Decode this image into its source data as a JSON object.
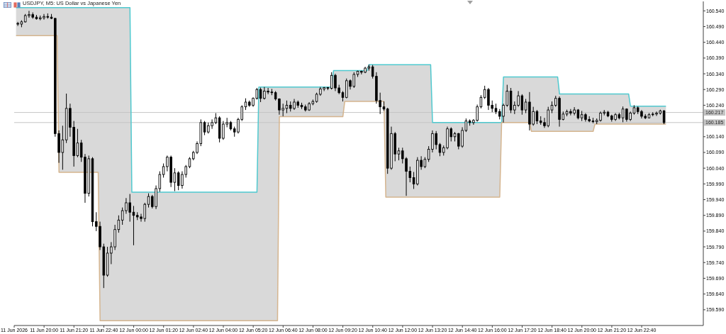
{
  "chart_data": {
    "type": "candlestick",
    "title": "USDJPY, M5: US Dollar vs Japanese Yen",
    "color": "#000000",
    "x": [
      "2026-06-11T18:50",
      "2026-06-11T19:00",
      "2026-06-11T19:10",
      "2026-06-11T19:20",
      "2026-06-11T19:30",
      "2026-06-11T19:40",
      "2026-06-11T19:50",
      "2026-06-11T20:00",
      "2026-06-11T20:10",
      "2026-06-11T20:20",
      "2026-06-11T20:30",
      "2026-06-11T20:40",
      "2026-06-11T20:50",
      "2026-06-11T21:00",
      "2026-06-11T21:10",
      "2026-06-11T21:20",
      "2026-06-11T21:30",
      "2026-06-11T21:40",
      "2026-06-11T21:50",
      "2026-06-11T22:00",
      "2026-06-11T22:10",
      "2026-06-11T22:20",
      "2026-06-11T22:30",
      "2026-06-11T22:40",
      "2026-06-11T22:50",
      "2026-06-11T23:00",
      "2026-06-11T23:10",
      "2026-06-11T23:20",
      "2026-06-11T23:30",
      "2026-06-11T23:40",
      "2026-06-11T23:50",
      "2026-06-12T00:00",
      "2026-06-12T00:10",
      "2026-06-12T00:20",
      "2026-06-12T00:30",
      "2026-06-12T00:40",
      "2026-06-12T00:50",
      "2026-06-12T01:00",
      "2026-06-12T01:10",
      "2026-06-12T01:20",
      "2026-06-12T01:30",
      "2026-06-12T01:40",
      "2026-06-12T01:50",
      "2026-06-12T02:00",
      "2026-06-12T02:10",
      "2026-06-12T02:20",
      "2026-06-12T02:30",
      "2026-06-12T02:40",
      "2026-06-12T02:50",
      "2026-06-12T03:00",
      "2026-06-12T03:10",
      "2026-06-12T03:20",
      "2026-06-12T03:30",
      "2026-06-12T03:40",
      "2026-06-12T03:50",
      "2026-06-12T04:00",
      "2026-06-12T04:10",
      "2026-06-12T04:20",
      "2026-06-12T04:30",
      "2026-06-12T04:40",
      "2026-06-12T04:50",
      "2026-06-12T05:00",
      "2026-06-12T05:10",
      "2026-06-12T05:20",
      "2026-06-12T05:30",
      "2026-06-12T05:40",
      "2026-06-12T05:50",
      "2026-06-12T06:00",
      "2026-06-12T06:10",
      "2026-06-12T06:20",
      "2026-06-12T06:30",
      "2026-06-12T06:40",
      "2026-06-12T06:50",
      "2026-06-12T07:00",
      "2026-06-12T07:10",
      "2026-06-12T07:20",
      "2026-06-12T07:30",
      "2026-06-12T07:40",
      "2026-06-12T07:50",
      "2026-06-12T08:00",
      "2026-06-12T08:10",
      "2026-06-12T08:20",
      "2026-06-12T08:30",
      "2026-06-12T08:40",
      "2026-06-12T08:50",
      "2026-06-12T09:00",
      "2026-06-12T09:10",
      "2026-06-12T09:20",
      "2026-06-12T09:30",
      "2026-06-12T09:40",
      "2026-06-12T09:50",
      "2026-06-12T10:00",
      "2026-06-12T10:10",
      "2026-06-12T10:20",
      "2026-06-12T10:30",
      "2026-06-12T10:40",
      "2026-06-12T10:50",
      "2026-06-12T11:00",
      "2026-06-12T11:10",
      "2026-06-12T11:20",
      "2026-06-12T11:30",
      "2026-06-12T11:40",
      "2026-06-12T11:50",
      "2026-06-12T12:00",
      "2026-06-12T12:10",
      "2026-06-12T12:20",
      "2026-06-12T12:30",
      "2026-06-12T12:40",
      "2026-06-12T12:50",
      "2026-06-12T13:00",
      "2026-06-12T13:10",
      "2026-06-12T13:20",
      "2026-06-12T13:30",
      "2026-06-12T13:40",
      "2026-06-12T13:50",
      "2026-06-12T14:00",
      "2026-06-12T14:10",
      "2026-06-12T14:20",
      "2026-06-12T14:30",
      "2026-06-12T14:40",
      "2026-06-12T14:50",
      "2026-06-12T15:00",
      "2026-06-12T15:10",
      "2026-06-12T15:20",
      "2026-06-12T15:30",
      "2026-06-12T15:40",
      "2026-06-12T15:50",
      "2026-06-12T16:00",
      "2026-06-12T16:10",
      "2026-06-12T16:20",
      "2026-06-12T16:30",
      "2026-06-12T16:40",
      "2026-06-12T16:50",
      "2026-06-12T17:00",
      "2026-06-12T17:10",
      "2026-06-12T17:20",
      "2026-06-12T17:30",
      "2026-06-12T17:40",
      "2026-06-12T17:50",
      "2026-06-12T18:00",
      "2026-06-12T18:10",
      "2026-06-12T18:20",
      "2026-06-12T18:30",
      "2026-06-12T18:40",
      "2026-06-12T18:50",
      "2026-06-12T19:00",
      "2026-06-12T19:10",
      "2026-06-12T19:20",
      "2026-06-12T19:30",
      "2026-06-12T19:40",
      "2026-06-12T19:50",
      "2026-06-12T20:00",
      "2026-06-12T20:10",
      "2026-06-12T20:20",
      "2026-06-12T20:30",
      "2026-06-12T20:40",
      "2026-06-12T20:50",
      "2026-06-12T21:00",
      "2026-06-12T21:10",
      "2026-06-12T21:20",
      "2026-06-12T21:30",
      "2026-06-12T21:40",
      "2026-06-12T21:50",
      "2026-06-12T22:00",
      "2026-06-12T22:10",
      "2026-06-12T22:20",
      "2026-06-12T22:30",
      "2026-06-12T22:40",
      "2026-06-12T22:50",
      "2026-06-12T23:00",
      "2026-06-12T23:10",
      "2026-06-12T23:20",
      "2026-06-12T23:30",
      "2026-06-12T23:40"
    ],
    "ohlc": [
      [
        160.5,
        160.505,
        160.492,
        160.498
      ],
      [
        160.498,
        160.51,
        160.488,
        160.505
      ],
      [
        160.505,
        160.53,
        160.503,
        160.525
      ],
      [
        160.525,
        160.54,
        160.518,
        160.528
      ],
      [
        160.528,
        160.535,
        160.515,
        160.52
      ],
      [
        160.52,
        160.527,
        160.512,
        160.515
      ],
      [
        160.515,
        160.525,
        160.51,
        160.518
      ],
      [
        160.518,
        160.53,
        160.512,
        160.522
      ],
      [
        160.522,
        160.532,
        160.515,
        160.52
      ],
      [
        160.52,
        160.53,
        160.514,
        160.516
      ],
      [
        160.516,
        160.518,
        160.14,
        160.15
      ],
      [
        160.15,
        160.16,
        160.057,
        160.09
      ],
      [
        160.09,
        160.175,
        160.035,
        160.13
      ],
      [
        160.13,
        160.277,
        160.12,
        160.23
      ],
      [
        160.23,
        160.245,
        160.14,
        160.17
      ],
      [
        160.17,
        160.19,
        160.045,
        160.08
      ],
      [
        160.08,
        160.165,
        160.075,
        160.12
      ],
      [
        160.12,
        160.13,
        160.06,
        160.075
      ],
      [
        160.075,
        160.085,
        159.93,
        159.96
      ],
      [
        159.96,
        160.08,
        159.95,
        160.07
      ],
      [
        160.07,
        160.075,
        159.855,
        159.87
      ],
      [
        159.87,
        159.9,
        159.84,
        159.855
      ],
      [
        159.855,
        159.87,
        159.78,
        159.79
      ],
      [
        159.79,
        159.8,
        159.659,
        159.7
      ],
      [
        159.7,
        159.79,
        159.695,
        159.77
      ],
      [
        159.77,
        159.805,
        159.735,
        159.79
      ],
      [
        159.79,
        159.86,
        159.78,
        159.845
      ],
      [
        159.845,
        159.89,
        159.835,
        159.875
      ],
      [
        159.875,
        159.915,
        159.86,
        159.905
      ],
      [
        159.905,
        159.945,
        159.895,
        159.93
      ],
      [
        159.93,
        159.958,
        159.87,
        159.9
      ],
      [
        159.9,
        159.92,
        159.795,
        159.89
      ],
      [
        159.89,
        159.9,
        159.875,
        159.885
      ],
      [
        159.885,
        159.895,
        159.87,
        159.88
      ],
      [
        159.88,
        159.93,
        159.87,
        159.925
      ],
      [
        159.925,
        159.96,
        159.915,
        159.95
      ],
      [
        159.95,
        159.955,
        159.912,
        159.918
      ],
      [
        159.918,
        159.985,
        159.91,
        159.975
      ],
      [
        159.975,
        160.03,
        159.965,
        160.02
      ],
      [
        160.02,
        160.055,
        160.01,
        160.045
      ],
      [
        160.045,
        160.08,
        160.03,
        160.075
      ],
      [
        160.075,
        160.08,
        159.98,
        159.995
      ],
      [
        159.995,
        160.04,
        159.967,
        160.025
      ],
      [
        160.025,
        160.03,
        159.97,
        159.985
      ],
      [
        159.985,
        160.03,
        159.975,
        160.02
      ],
      [
        160.02,
        160.05,
        160.01,
        160.045
      ],
      [
        160.045,
        160.075,
        160.04,
        160.07
      ],
      [
        160.07,
        160.095,
        160.065,
        160.09
      ],
      [
        160.09,
        160.125,
        160.085,
        160.118
      ],
      [
        160.118,
        160.195,
        160.11,
        160.185
      ],
      [
        160.185,
        160.19,
        160.145,
        160.155
      ],
      [
        160.155,
        160.185,
        160.15,
        160.175
      ],
      [
        160.175,
        160.195,
        160.165,
        160.185
      ],
      [
        160.185,
        160.215,
        160.18,
        160.2
      ],
      [
        160.2,
        160.205,
        160.122,
        160.135
      ],
      [
        160.135,
        160.19,
        160.13,
        160.18
      ],
      [
        160.18,
        160.2,
        160.17,
        160.185
      ],
      [
        160.185,
        160.19,
        160.16,
        160.165
      ],
      [
        160.165,
        160.172,
        160.14,
        160.155
      ],
      [
        160.155,
        160.2,
        160.15,
        160.195
      ],
      [
        160.195,
        160.24,
        160.19,
        160.235
      ],
      [
        160.235,
        160.262,
        160.225,
        160.25
      ],
      [
        160.25,
        160.255,
        160.235,
        160.24
      ],
      [
        160.24,
        160.265,
        160.235,
        160.262
      ],
      [
        160.262,
        160.295,
        160.258,
        160.29
      ],
      [
        160.29,
        160.296,
        160.25,
        160.262
      ],
      [
        160.262,
        160.298,
        160.258,
        160.285
      ],
      [
        160.285,
        160.295,
        160.275,
        160.282
      ],
      [
        160.282,
        160.292,
        160.272,
        160.28
      ],
      [
        160.28,
        160.285,
        160.255,
        160.26
      ],
      [
        160.26,
        160.262,
        160.21,
        160.225
      ],
      [
        160.225,
        160.245,
        160.205,
        160.23
      ],
      [
        160.23,
        160.255,
        160.215,
        160.24
      ],
      [
        160.24,
        160.252,
        160.22,
        160.23
      ],
      [
        160.23,
        160.26,
        160.225,
        160.25
      ],
      [
        160.25,
        160.255,
        160.232,
        160.24
      ],
      [
        160.24,
        160.248,
        160.228,
        160.235
      ],
      [
        160.235,
        160.242,
        160.22,
        160.225
      ],
      [
        160.225,
        160.25,
        160.222,
        160.245
      ],
      [
        160.245,
        160.258,
        160.24,
        160.252
      ],
      [
        160.252,
        160.28,
        160.248,
        160.275
      ],
      [
        160.275,
        160.298,
        160.27,
        160.292
      ],
      [
        160.292,
        160.298,
        160.285,
        160.296
      ],
      [
        160.296,
        160.298,
        160.288,
        160.294
      ],
      [
        160.294,
        160.345,
        160.29,
        160.335
      ],
      [
        160.335,
        160.34,
        160.285,
        160.295
      ],
      [
        160.295,
        160.305,
        160.275,
        160.28
      ],
      [
        160.28,
        160.285,
        160.252,
        160.265
      ],
      [
        160.265,
        160.325,
        160.262,
        160.318
      ],
      [
        160.318,
        160.322,
        160.29,
        160.3
      ],
      [
        160.3,
        160.345,
        160.295,
        160.338
      ],
      [
        160.338,
        160.35,
        160.33,
        160.348
      ],
      [
        160.348,
        160.35,
        160.338,
        160.345
      ],
      [
        160.345,
        160.362,
        160.342,
        160.358
      ],
      [
        160.358,
        160.369,
        160.35,
        160.362
      ],
      [
        160.362,
        160.368,
        160.325,
        160.332
      ],
      [
        160.332,
        160.345,
        160.245,
        160.255
      ],
      [
        160.255,
        160.28,
        160.212,
        160.235
      ],
      [
        160.235,
        160.252,
        160.222,
        160.228
      ],
      [
        160.228,
        160.232,
        160.022,
        160.04
      ],
      [
        160.04,
        160.172,
        160.035,
        160.15
      ],
      [
        160.15,
        160.155,
        160.062,
        160.085
      ],
      [
        160.085,
        160.105,
        160.065,
        160.095
      ],
      [
        160.095,
        160.105,
        160.055,
        160.07
      ],
      [
        160.07,
        160.075,
        159.952,
        160.03
      ],
      [
        160.03,
        160.045,
        159.995,
        160.01
      ],
      [
        160.01,
        160.028,
        159.974,
        159.99
      ],
      [
        159.99,
        160.075,
        159.985,
        160.065
      ],
      [
        160.065,
        160.078,
        160.035,
        160.045
      ],
      [
        160.045,
        160.075,
        160.04,
        160.068
      ],
      [
        160.068,
        160.11,
        160.06,
        160.1
      ],
      [
        160.1,
        160.16,
        160.09,
        160.15
      ],
      [
        160.15,
        160.158,
        160.1,
        160.115
      ],
      [
        160.115,
        160.12,
        160.078,
        160.09
      ],
      [
        160.09,
        160.112,
        160.08,
        160.105
      ],
      [
        160.105,
        160.172,
        160.1,
        160.165
      ],
      [
        160.165,
        160.17,
        160.125,
        160.14
      ],
      [
        160.14,
        160.155,
        160.125,
        160.15
      ],
      [
        160.15,
        160.152,
        160.1,
        160.11
      ],
      [
        160.11,
        160.17,
        160.105,
        160.16
      ],
      [
        160.16,
        160.198,
        160.155,
        160.19
      ],
      [
        160.19,
        160.195,
        160.175,
        160.185
      ],
      [
        160.185,
        160.196,
        160.178,
        160.192
      ],
      [
        160.192,
        160.242,
        160.188,
        160.235
      ],
      [
        160.235,
        160.272,
        160.23,
        160.265
      ],
      [
        160.265,
        160.302,
        160.26,
        160.29
      ],
      [
        160.29,
        160.295,
        160.225,
        160.24
      ],
      [
        160.24,
        160.255,
        160.218,
        160.23
      ],
      [
        160.23,
        160.245,
        160.212,
        160.22
      ],
      [
        160.22,
        160.228,
        160.195,
        160.205
      ],
      [
        160.205,
        160.245,
        160.185,
        160.24
      ],
      [
        160.24,
        160.305,
        160.235,
        160.285
      ],
      [
        160.285,
        160.295,
        160.215,
        160.225
      ],
      [
        160.225,
        160.252,
        160.212,
        160.24
      ],
      [
        160.24,
        160.285,
        160.235,
        160.27
      ],
      [
        160.27,
        160.275,
        160.21,
        160.225
      ],
      [
        160.225,
        160.26,
        160.215,
        160.25
      ],
      [
        160.25,
        160.282,
        160.16,
        160.18
      ],
      [
        160.18,
        160.235,
        160.175,
        160.22
      ],
      [
        160.22,
        160.225,
        160.18,
        160.19
      ],
      [
        160.19,
        160.205,
        160.178,
        160.185
      ],
      [
        160.185,
        160.2,
        160.168,
        160.175
      ],
      [
        160.175,
        160.235,
        160.17,
        160.225
      ],
      [
        160.225,
        160.252,
        160.215,
        160.24
      ],
      [
        160.24,
        160.27,
        160.235,
        160.262
      ],
      [
        160.262,
        160.268,
        160.172,
        160.195
      ],
      [
        160.195,
        160.22,
        160.192,
        160.212
      ],
      [
        160.212,
        160.226,
        160.205,
        160.22
      ],
      [
        160.22,
        160.228,
        160.208,
        160.215
      ],
      [
        160.215,
        160.234,
        160.208,
        160.225
      ],
      [
        160.225,
        160.228,
        160.195,
        160.2
      ],
      [
        160.2,
        160.222,
        160.19,
        160.21
      ],
      [
        160.21,
        160.215,
        160.188,
        160.195
      ],
      [
        160.195,
        160.205,
        160.186,
        160.19
      ],
      [
        160.19,
        160.2,
        160.183,
        160.188
      ],
      [
        160.188,
        160.198,
        160.18,
        160.192
      ],
      [
        160.192,
        160.22,
        160.188,
        160.215
      ],
      [
        160.215,
        160.225,
        160.208,
        160.218
      ],
      [
        160.218,
        160.222,
        160.202,
        160.206
      ],
      [
        160.206,
        160.21,
        160.188,
        160.195
      ],
      [
        160.195,
        160.215,
        160.19,
        160.21
      ],
      [
        160.21,
        160.216,
        160.195,
        160.2
      ],
      [
        160.2,
        160.236,
        160.186,
        160.228
      ],
      [
        160.228,
        160.23,
        160.188,
        160.195
      ],
      [
        160.195,
        160.22,
        160.19,
        160.215
      ],
      [
        160.215,
        160.24,
        160.21,
        160.232
      ],
      [
        160.232,
        160.236,
        160.212,
        160.22
      ],
      [
        160.22,
        160.225,
        160.198,
        160.205
      ],
      [
        160.205,
        160.212,
        160.196,
        160.2
      ],
      [
        160.2,
        160.215,
        160.198,
        160.21
      ],
      [
        160.21,
        160.218,
        160.205,
        160.212
      ],
      [
        160.212,
        160.22,
        160.206,
        160.215
      ],
      [
        160.215,
        160.226,
        160.21,
        160.222
      ],
      [
        160.222,
        160.225,
        160.18,
        160.185
      ]
    ],
    "series": [
      {
        "type": "line",
        "color": "#4fc9cf",
        "x": [
          "2026-06-11T18:45",
          "2026-06-11T20:35",
          "2026-06-11T20:40",
          "2026-06-11T22:25",
          "2026-06-11T22:30",
          "2026-06-11T23:50",
          "2026-06-11T23:55",
          "2026-06-12T05:30",
          "2026-06-12T05:35",
          "2026-06-12T06:25",
          "2026-06-12T06:30",
          "2026-06-12T08:50",
          "2026-06-12T08:55",
          "2026-06-12T09:20",
          "2026-06-12T09:25",
          "2026-06-12T10:25",
          "2026-06-12T10:30",
          "2026-06-12T11:10",
          "2026-06-12T11:15",
          "2026-06-12T13:15",
          "2026-06-12T13:20",
          "2026-06-12T16:20",
          "2026-06-12T16:25",
          "2026-06-12T16:30",
          "2026-06-12T17:40",
          "2026-06-12T17:45",
          "2026-06-12T18:55",
          "2026-06-12T19:00",
          "2026-06-12T20:30",
          "2026-06-12T20:35",
          "2026-06-12T22:05",
          "2026-06-12T22:10",
          "2026-06-12T23:45"
        ],
        "values": [
          160.55,
          160.55,
          160.55,
          160.55,
          160.55,
          160.55,
          159.964,
          159.964,
          160.298,
          160.298,
          160.298,
          160.298,
          160.35,
          160.35,
          160.35,
          160.35,
          160.369,
          160.369,
          160.369,
          160.369,
          160.185,
          160.185,
          160.185,
          160.33,
          160.33,
          160.33,
          160.33,
          160.276,
          160.276,
          160.276,
          160.276,
          160.237,
          160.237
        ],
        "lower": [
          160.461,
          160.461,
          160.027,
          160.027,
          159.555,
          159.555,
          159.555,
          159.555,
          159.555,
          159.555,
          160.204,
          160.204,
          160.204,
          160.204,
          160.252,
          160.252,
          160.252,
          160.252,
          159.948,
          159.948,
          159.948,
          159.948,
          160.185,
          160.185,
          160.185,
          160.157,
          160.157,
          160.157,
          160.157,
          160.18,
          160.18,
          160.18,
          160.18
        ],
        "upper": [
          160.55,
          160.55,
          160.55,
          160.55,
          160.55,
          160.55,
          159.964,
          159.964,
          160.298,
          160.298,
          160.298,
          160.298,
          160.35,
          160.35,
          160.35,
          160.35,
          160.369,
          160.369,
          160.369,
          160.369,
          160.185,
          160.185,
          160.185,
          160.33,
          160.33,
          160.33,
          160.33,
          160.276,
          160.276,
          160.276,
          160.276,
          160.237,
          160.237
        ]
      },
      {
        "type": "line",
        "color": "#d5b58f",
        "x": [
          "2026-06-11T18:45",
          "2026-06-11T20:35",
          "2026-06-11T20:40",
          "2026-06-11T22:25",
          "2026-06-11T22:30",
          "2026-06-11T23:50",
          "2026-06-11T23:55",
          "2026-06-12T05:30",
          "2026-06-12T05:35",
          "2026-06-12T06:25",
          "2026-06-12T06:30",
          "2026-06-12T08:50",
          "2026-06-12T08:55",
          "2026-06-12T09:20",
          "2026-06-12T09:25",
          "2026-06-12T10:25",
          "2026-06-12T10:30",
          "2026-06-12T11:10",
          "2026-06-12T11:15",
          "2026-06-12T13:15",
          "2026-06-12T13:20",
          "2026-06-12T16:20",
          "2026-06-12T16:25",
          "2026-06-12T16:30",
          "2026-06-12T17:40",
          "2026-06-12T17:45",
          "2026-06-12T18:55",
          "2026-06-12T19:00",
          "2026-06-12T20:30",
          "2026-06-12T20:35",
          "2026-06-12T22:05",
          "2026-06-12T22:10",
          "2026-06-12T23:45"
        ],
        "values": [
          160.461,
          160.461,
          160.027,
          160.027,
          159.555,
          159.555,
          159.555,
          159.555,
          159.555,
          159.555,
          160.204,
          160.204,
          160.204,
          160.204,
          160.252,
          160.252,
          160.252,
          160.252,
          159.948,
          159.948,
          159.948,
          159.948,
          160.185,
          160.185,
          160.185,
          160.157,
          160.157,
          160.157,
          160.157,
          160.18,
          160.18,
          160.18,
          160.18
        ]
      }
    ],
    "ref_lines": [
      {
        "axis": "y",
        "value": 160.217,
        "label": "160.217",
        "color": "#c4c4c4"
      },
      {
        "axis": "y",
        "value": 160.185,
        "label": "160.185",
        "color": "#c4c4c4"
      }
    ],
    "xlim": [
      "2026-06-11T18:40",
      "2026-06-13T01:25"
    ],
    "xticks": [
      {
        "value": "2026-06-11T18:40",
        "label": "11 Jun 2026"
      },
      {
        "value": "2026-06-11T20:00",
        "label": "11 Jun 20:00"
      },
      {
        "value": "2026-06-11T21:20",
        "label": "11 Jun 21:20"
      },
      {
        "value": "2026-06-11T22:40",
        "label": "11 Jun 22:40"
      },
      {
        "value": "2026-06-12T00:00",
        "label": "12 Jun 00:00"
      },
      {
        "value": "2026-06-12T01:20",
        "label": "12 Jun 01:20"
      },
      {
        "value": "2026-06-12T02:40",
        "label": "12 Jun 02:40"
      },
      {
        "value": "2026-06-12T04:00",
        "label": "12 Jun 04:00"
      },
      {
        "value": "2026-06-12T05:20",
        "label": "12 Jun 05:20"
      },
      {
        "value": "2026-06-12T06:40",
        "label": "12 Jun 06:40"
      },
      {
        "value": "2026-06-12T08:00",
        "label": "12 Jun 08:00"
      },
      {
        "value": "2026-06-12T09:20",
        "label": "12 Jun 09:20"
      },
      {
        "value": "2026-06-12T10:40",
        "label": "12 Jun 10:40"
      },
      {
        "value": "2026-06-12T12:00",
        "label": "12 Jun 12:00"
      },
      {
        "value": "2026-06-12T13:20",
        "label": "12 Jun 13:20"
      },
      {
        "value": "2026-06-12T14:40",
        "label": "12 Jun 14:40"
      },
      {
        "value": "2026-06-12T16:00",
        "label": "12 Jun 16:00"
      },
      {
        "value": "2026-06-12T17:20",
        "label": "12 Jun 17:20"
      },
      {
        "value": "2026-06-12T18:40",
        "label": "12 Jun 18:40"
      },
      {
        "value": "2026-06-12T20:00",
        "label": "12 Jun 20:00"
      },
      {
        "value": "2026-06-12T21:20",
        "label": "12 Jun 21:20"
      },
      {
        "value": "2026-06-12T22:40",
        "label": "12 Jun 22:40"
      }
    ],
    "ylim": [
      159.54,
      160.57
    ],
    "yticks": [
      {
        "value": 159.59,
        "label": "159.590"
      },
      {
        "value": 159.64,
        "label": "159.640"
      },
      {
        "value": 159.69,
        "label": "159.690"
      },
      {
        "value": 159.74,
        "label": "159.740"
      },
      {
        "value": 159.79,
        "label": "159.790"
      },
      {
        "value": 159.84,
        "label": "159.840"
      },
      {
        "value": 159.89,
        "label": "159.890"
      },
      {
        "value": 159.94,
        "label": "159.940"
      },
      {
        "value": 159.99,
        "label": "159.990"
      },
      {
        "value": 160.04,
        "label": "160.040"
      },
      {
        "value": 160.09,
        "label": "160.090"
      },
      {
        "value": 160.14,
        "label": "160.140"
      },
      {
        "value": 160.24,
        "label": "160.240"
      },
      {
        "value": 160.29,
        "label": "160.290"
      },
      {
        "value": 160.34,
        "label": "160.340"
      },
      {
        "value": 160.39,
        "label": "160.390"
      },
      {
        "value": 160.44,
        "label": "160.440"
      },
      {
        "value": 160.49,
        "label": "160.490"
      },
      {
        "value": 160.54,
        "label": "160.540"
      }
    ]
  }
}
